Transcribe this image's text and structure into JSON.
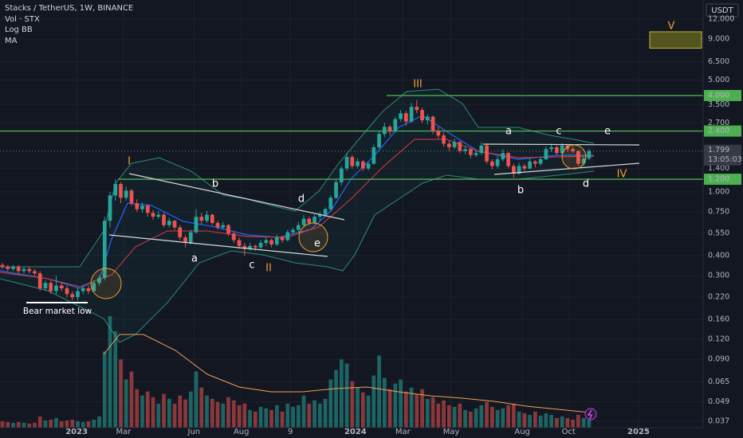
{
  "chart_data": {
    "type": "candlestick",
    "title": "Stacks / TetherUS, 1W, BINANCE",
    "indicators": [
      "Vol · STX",
      "Log BB",
      "MA"
    ],
    "currency": "USDT",
    "log_scale": true,
    "grid": true,
    "up_color": "#26a69a",
    "down_color": "#ef5350",
    "level_color": "#4caf50",
    "xlim": [
      -0.44,
      130.2
    ],
    "xticks": [
      {
        "value": 13.8,
        "label": "2023"
      },
      {
        "value": 22.5,
        "label": "Mar"
      },
      {
        "value": 35.6,
        "label": "Jun"
      },
      {
        "value": 44.4,
        "label": "Aug"
      },
      {
        "value": 53.5,
        "label": "9"
      },
      {
        "value": 65.6,
        "label": "2024"
      },
      {
        "value": 74.4,
        "label": "Mar"
      },
      {
        "value": 83.4,
        "label": "May"
      },
      {
        "value": 96.6,
        "label": "Aug"
      },
      {
        "value": 105.2,
        "label": "Oct"
      },
      {
        "value": 118.2,
        "label": "2025"
      }
    ],
    "ylim": [
      0.0337,
      15.8
    ],
    "yticks": [
      {
        "value": 12,
        "label": "12.000"
      },
      {
        "value": 9,
        "label": "9.000"
      },
      {
        "value": 6.5,
        "label": "6.500"
      },
      {
        "value": 5,
        "label": "5.000"
      },
      {
        "value": 3.5,
        "label": "3.500"
      },
      {
        "value": 2.7,
        "label": "2.700"
      },
      {
        "value": 1.4,
        "label": "1.400"
      },
      {
        "value": 1,
        "label": "1.000"
      },
      {
        "value": 0.75,
        "label": "0.750"
      },
      {
        "value": 0.55,
        "label": "0.550"
      },
      {
        "value": 0.4,
        "label": "0.400"
      },
      {
        "value": 0.3,
        "label": "0.300"
      },
      {
        "value": 0.22,
        "label": "0.220"
      },
      {
        "value": 0.16,
        "label": "0.160"
      },
      {
        "value": 0.12,
        "label": "0.120"
      },
      {
        "value": 0.09,
        "label": "0.090"
      },
      {
        "value": 0.065,
        "label": "0.065"
      },
      {
        "value": 0.049,
        "label": "0.049"
      },
      {
        "value": 0.037,
        "label": "0.037"
      }
    ],
    "levels": [
      {
        "value": 4,
        "label": "4.000"
      },
      {
        "value": 2.4,
        "label": "2.400"
      },
      {
        "value": 1.2,
        "label": "1.200"
      }
    ],
    "last_price": 1.799,
    "countdown": "13:05:03",
    "target_zone": [
      7.9,
      10
    ],
    "annotations": [
      "I",
      "II",
      "III",
      "IV",
      "V",
      "a",
      "b",
      "c",
      "d",
      "e",
      "a",
      "b",
      "c",
      "d",
      "e",
      "Bear market low"
    ],
    "candles": [
      [
        0.35,
        0.36,
        0.33,
        0.34
      ],
      [
        0.34,
        0.35,
        0.32,
        0.33
      ],
      [
        0.33,
        0.35,
        0.32,
        0.34
      ],
      [
        0.34,
        0.35,
        0.31,
        0.32
      ],
      [
        0.32,
        0.34,
        0.31,
        0.33
      ],
      [
        0.33,
        0.34,
        0.31,
        0.32
      ],
      [
        0.32,
        0.33,
        0.3,
        0.31
      ],
      [
        0.31,
        0.32,
        0.24,
        0.25
      ],
      [
        0.25,
        0.28,
        0.24,
        0.27
      ],
      [
        0.27,
        0.28,
        0.23,
        0.24
      ],
      [
        0.24,
        0.3,
        0.23,
        0.26
      ],
      [
        0.26,
        0.27,
        0.24,
        0.25
      ],
      [
        0.25,
        0.26,
        0.22,
        0.23
      ],
      [
        0.23,
        0.24,
        0.21,
        0.22
      ],
      [
        0.22,
        0.25,
        0.21,
        0.24
      ],
      [
        0.24,
        0.26,
        0.23,
        0.25
      ],
      [
        0.25,
        0.26,
        0.23,
        0.24
      ],
      [
        0.24,
        0.28,
        0.24,
        0.27
      ],
      [
        0.27,
        0.3,
        0.26,
        0.29
      ],
      [
        0.29,
        0.7,
        0.28,
        0.66
      ],
      [
        0.66,
        1.0,
        0.6,
        0.95
      ],
      [
        0.95,
        1.2,
        0.88,
        1.12
      ],
      [
        1.12,
        1.15,
        0.85,
        0.92
      ],
      [
        0.92,
        1.08,
        0.88,
        1.02
      ],
      [
        1.02,
        1.04,
        0.82,
        0.85
      ],
      [
        0.85,
        0.9,
        0.75,
        0.78
      ],
      [
        0.78,
        0.86,
        0.74,
        0.82
      ],
      [
        0.82,
        0.84,
        0.7,
        0.74
      ],
      [
        0.74,
        0.77,
        0.67,
        0.7
      ],
      [
        0.7,
        0.76,
        0.68,
        0.72
      ],
      [
        0.72,
        0.74,
        0.6,
        0.62
      ],
      [
        0.62,
        0.69,
        0.6,
        0.66
      ],
      [
        0.66,
        0.67,
        0.58,
        0.6
      ],
      [
        0.6,
        0.62,
        0.5,
        0.52
      ],
      [
        0.52,
        0.54,
        0.45,
        0.48
      ],
      [
        0.48,
        0.58,
        0.47,
        0.56
      ],
      [
        0.56,
        0.78,
        0.55,
        0.7
      ],
      [
        0.7,
        0.74,
        0.63,
        0.66
      ],
      [
        0.66,
        0.76,
        0.64,
        0.72
      ],
      [
        0.72,
        0.73,
        0.62,
        0.64
      ],
      [
        0.64,
        0.66,
        0.58,
        0.6
      ],
      [
        0.6,
        0.65,
        0.58,
        0.62
      ],
      [
        0.62,
        0.63,
        0.53,
        0.55
      ],
      [
        0.55,
        0.57,
        0.48,
        0.5
      ],
      [
        0.5,
        0.52,
        0.44,
        0.46
      ],
      [
        0.46,
        0.48,
        0.4,
        0.44
      ],
      [
        0.44,
        0.48,
        0.43,
        0.46
      ],
      [
        0.46,
        0.47,
        0.43,
        0.45
      ],
      [
        0.45,
        0.5,
        0.44,
        0.48
      ],
      [
        0.48,
        0.52,
        0.46,
        0.5
      ],
      [
        0.5,
        0.51,
        0.45,
        0.47
      ],
      [
        0.47,
        0.54,
        0.46,
        0.52
      ],
      [
        0.52,
        0.53,
        0.48,
        0.5
      ],
      [
        0.5,
        0.58,
        0.49,
        0.56
      ],
      [
        0.56,
        0.6,
        0.54,
        0.58
      ],
      [
        0.58,
        0.65,
        0.56,
        0.62
      ],
      [
        0.62,
        0.72,
        0.6,
        0.68
      ],
      [
        0.68,
        0.7,
        0.62,
        0.64
      ],
      [
        0.64,
        0.72,
        0.63,
        0.7
      ],
      [
        0.7,
        0.75,
        0.66,
        0.72
      ],
      [
        0.72,
        0.8,
        0.7,
        0.78
      ],
      [
        0.78,
        0.95,
        0.76,
        0.92
      ],
      [
        0.92,
        1.2,
        0.9,
        1.15
      ],
      [
        1.15,
        1.45,
        1.1,
        1.4
      ],
      [
        1.4,
        1.75,
        1.35,
        1.65
      ],
      [
        1.65,
        1.7,
        1.4,
        1.45
      ],
      [
        1.45,
        1.62,
        1.4,
        1.55
      ],
      [
        1.55,
        1.58,
        1.35,
        1.4
      ],
      [
        1.4,
        1.55,
        1.36,
        1.5
      ],
      [
        1.5,
        1.98,
        1.48,
        1.9
      ],
      [
        1.9,
        2.4,
        1.85,
        2.3
      ],
      [
        2.3,
        2.7,
        2.2,
        2.55
      ],
      [
        2.55,
        2.62,
        2.25,
        2.4
      ],
      [
        2.4,
        2.95,
        2.35,
        2.85
      ],
      [
        2.85,
        3.25,
        2.75,
        3.1
      ],
      [
        3.1,
        3.2,
        2.6,
        2.75
      ],
      [
        2.75,
        3.6,
        2.7,
        3.4
      ],
      [
        3.4,
        3.75,
        3.1,
        3.25
      ],
      [
        3.25,
        3.35,
        2.7,
        2.8
      ],
      [
        2.8,
        3.05,
        2.65,
        2.95
      ],
      [
        2.95,
        3.0,
        2.3,
        2.4
      ],
      [
        2.4,
        2.55,
        2.15,
        2.25
      ],
      [
        2.25,
        2.35,
        1.92,
        2.0
      ],
      [
        2.0,
        2.1,
        1.8,
        1.9
      ],
      [
        1.9,
        2.15,
        1.85,
        2.05
      ],
      [
        2.05,
        2.08,
        1.75,
        1.8
      ],
      [
        1.8,
        1.95,
        1.72,
        1.85
      ],
      [
        1.85,
        1.88,
        1.62,
        1.7
      ],
      [
        1.7,
        1.82,
        1.65,
        1.75
      ],
      [
        1.75,
        2.05,
        1.7,
        1.95
      ],
      [
        1.95,
        1.98,
        1.5,
        1.55
      ],
      [
        1.55,
        1.6,
        1.38,
        1.45
      ],
      [
        1.45,
        1.68,
        1.4,
        1.6
      ],
      [
        1.6,
        1.85,
        1.55,
        1.75
      ],
      [
        1.75,
        1.78,
        1.4,
        1.45
      ],
      [
        1.45,
        1.5,
        1.22,
        1.3
      ],
      [
        1.3,
        1.52,
        1.28,
        1.45
      ],
      [
        1.45,
        1.5,
        1.35,
        1.4
      ],
      [
        1.4,
        1.62,
        1.38,
        1.55
      ],
      [
        1.55,
        1.58,
        1.42,
        1.5
      ],
      [
        1.5,
        1.66,
        1.46,
        1.6
      ],
      [
        1.6,
        1.92,
        1.58,
        1.85
      ],
      [
        1.85,
        2.0,
        1.78,
        1.9
      ],
      [
        1.9,
        1.95,
        1.7,
        1.75
      ],
      [
        1.75,
        2.02,
        1.72,
        1.95
      ],
      [
        1.95,
        1.98,
        1.78,
        1.85
      ],
      [
        1.85,
        1.92,
        1.75,
        1.8
      ],
      [
        1.8,
        1.82,
        1.45,
        1.5
      ],
      [
        1.5,
        1.68,
        1.46,
        1.62
      ],
      [
        1.62,
        1.85,
        1.58,
        1.799
      ]
    ],
    "volume": [
      8,
      7,
      6,
      7,
      6,
      5,
      6,
      14,
      9,
      10,
      12,
      8,
      9,
      10,
      8,
      7,
      8,
      10,
      14,
      95,
      139,
      120,
      85,
      60,
      70,
      48,
      40,
      45,
      38,
      30,
      42,
      36,
      30,
      40,
      35,
      45,
      70,
      50,
      40,
      36,
      32,
      30,
      38,
      34,
      28,
      30,
      22,
      20,
      26,
      24,
      22,
      28,
      20,
      30,
      26,
      28,
      40,
      30,
      34,
      30,
      36,
      60,
      72,
      85,
      80,
      58,
      50,
      44,
      40,
      65,
      90,
      62,
      48,
      55,
      60,
      45,
      50,
      42,
      48,
      36,
      38,
      30,
      34,
      28,
      26,
      30,
      22,
      20,
      24,
      28,
      32,
      26,
      22,
      24,
      28,
      30,
      20,
      18,
      16,
      20,
      15,
      18,
      16,
      12,
      14,
      12,
      10,
      16,
      12,
      10
    ]
  }
}
